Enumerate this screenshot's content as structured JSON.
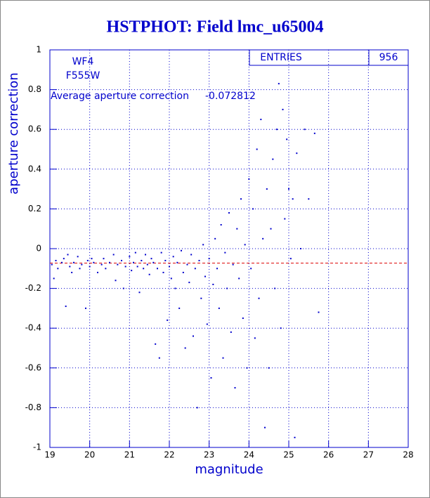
{
  "chart_data": {
    "type": "scatter",
    "title": "HSTPHOT: Field lmc_u65004",
    "x_label": "magnitude",
    "y_label": "aperture correction",
    "annotations": [
      "WF4",
      "F555W"
    ],
    "average_label": "Average aperture correction",
    "average": -0.072812,
    "average_color": "#dd0000",
    "stats_label": "ENTRIES",
    "entries": 956,
    "color": "#0000cc",
    "grid": true,
    "xlim": [
      19,
      28
    ],
    "xticks": [
      19,
      20,
      21,
      22,
      23,
      24,
      25,
      26,
      27,
      28
    ],
    "ylim": [
      -1,
      1
    ],
    "yticks": [
      -1,
      -0.8,
      -0.6,
      -0.4,
      -0.2,
      0,
      0.2,
      0.4,
      0.6,
      0.8,
      1
    ],
    "x": [
      19.05,
      19.1,
      19.15,
      19.2,
      19.3,
      19.35,
      19.4,
      19.45,
      19.5,
      19.55,
      19.6,
      19.7,
      19.75,
      19.8,
      19.9,
      19.95,
      20.0,
      20.05,
      20.1,
      20.2,
      20.3,
      20.35,
      20.4,
      20.5,
      20.6,
      20.65,
      20.7,
      20.8,
      20.85,
      20.9,
      21.0,
      21.05,
      21.1,
      21.15,
      21.2,
      21.25,
      21.3,
      21.35,
      21.4,
      21.45,
      21.5,
      21.55,
      21.6,
      21.65,
      21.7,
      21.75,
      21.8,
      21.85,
      21.9,
      21.95,
      22.0,
      22.05,
      22.1,
      22.15,
      22.2,
      22.25,
      22.3,
      22.35,
      22.4,
      22.45,
      22.5,
      22.55,
      22.6,
      22.65,
      22.7,
      22.75,
      22.8,
      22.85,
      22.9,
      22.95,
      23.0,
      23.05,
      23.1,
      23.15,
      23.2,
      23.25,
      23.3,
      23.35,
      23.4,
      23.45,
      23.5,
      23.55,
      23.6,
      23.65,
      23.7,
      23.75,
      23.8,
      23.85,
      23.9,
      23.95,
      24.0,
      24.05,
      24.1,
      24.15,
      24.2,
      24.25,
      24.3,
      24.35,
      24.4,
      24.45,
      24.5,
      24.55,
      24.6,
      24.65,
      24.7,
      24.75,
      24.8,
      24.85,
      24.9,
      24.95,
      25.0,
      25.05,
      25.1,
      25.15,
      25.2,
      25.3,
      25.4,
      25.5,
      25.65,
      25.75
    ],
    "values": [
      -0.08,
      -0.15,
      -0.06,
      -0.1,
      -0.07,
      -0.05,
      -0.29,
      -0.03,
      -0.09,
      -0.12,
      -0.07,
      -0.04,
      -0.1,
      -0.08,
      -0.3,
      -0.06,
      -0.09,
      -0.05,
      -0.07,
      -0.12,
      -0.08,
      -0.05,
      -0.1,
      -0.07,
      -0.03,
      -0.16,
      -0.08,
      -0.06,
      -0.2,
      -0.09,
      -0.04,
      -0.11,
      -0.07,
      -0.02,
      -0.09,
      -0.22,
      -0.06,
      -0.1,
      -0.03,
      -0.08,
      -0.13,
      -0.05,
      -0.07,
      -0.48,
      -0.1,
      -0.55,
      -0.02,
      -0.12,
      -0.06,
      -0.36,
      -0.09,
      -0.15,
      -0.04,
      -0.2,
      -0.07,
      -0.3,
      -0.01,
      -0.12,
      -0.5,
      -0.08,
      -0.17,
      -0.03,
      -0.44,
      -0.1,
      -0.8,
      -0.06,
      -0.25,
      0.02,
      -0.14,
      -0.38,
      -0.05,
      -0.65,
      -0.18,
      0.05,
      -0.1,
      -0.3,
      0.12,
      -0.55,
      -0.02,
      -0.2,
      0.18,
      -0.42,
      -0.08,
      -0.7,
      0.1,
      -0.15,
      0.25,
      -0.35,
      0.02,
      -0.6,
      0.35,
      -0.1,
      0.2,
      -0.45,
      0.5,
      -0.25,
      0.65,
      0.05,
      -0.9,
      0.3,
      -0.6,
      0.1,
      0.45,
      -0.2,
      0.6,
      0.83,
      -0.4,
      0.7,
      0.15,
      0.55,
      0.3,
      -0.05,
      0.25,
      -0.95,
      0.48,
      0.0,
      0.6,
      0.25,
      0.58,
      -0.32
    ]
  }
}
